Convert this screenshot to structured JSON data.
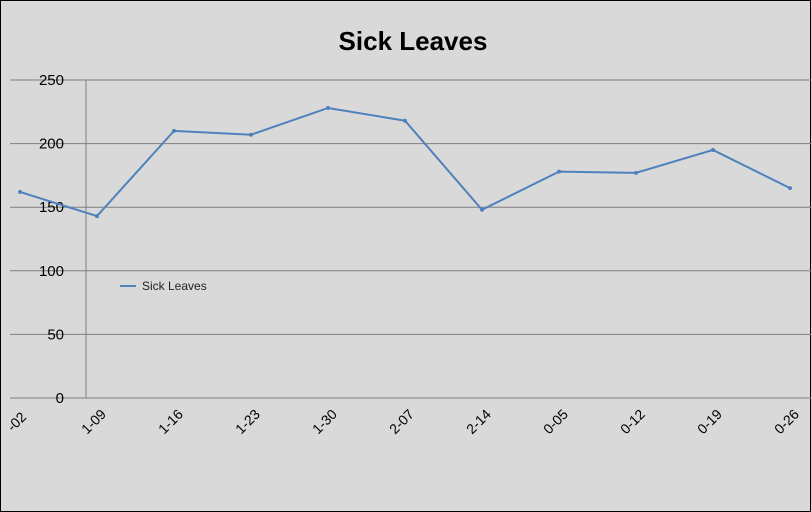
{
  "chart_data": {
    "type": "line",
    "title": "Sick Leaves",
    "xlabel": "",
    "ylabel": "",
    "ylim": [
      0,
      250
    ],
    "yticks": [
      "0",
      "50",
      "100",
      "150",
      "200",
      "250"
    ],
    "grid": true,
    "legend_position": "bottom",
    "x_tick_labels": [
      "-02",
      "1-09",
      "1-16",
      "1-23",
      "1-30",
      "2-07",
      "2-14",
      "0-05",
      "0-12",
      "0-19",
      "0-26"
    ],
    "series": [
      {
        "name": "Sick Leaves",
        "color": "#4f81bd",
        "x": [
          "-02",
          "1-09",
          "1-16",
          "1-23",
          "1-30",
          "2-07",
          "2-14",
          "0-05",
          "0-12",
          "0-19",
          "0-26"
        ],
        "values": [
          162,
          143,
          210,
          207,
          228,
          218,
          148,
          178,
          177,
          195,
          165
        ]
      }
    ]
  },
  "legend": {
    "label": "Sick Leaves"
  },
  "colors": {
    "plot_background": "#d9d9d9",
    "gridline": "#7f7f7f",
    "series": "#4f81bd"
  }
}
